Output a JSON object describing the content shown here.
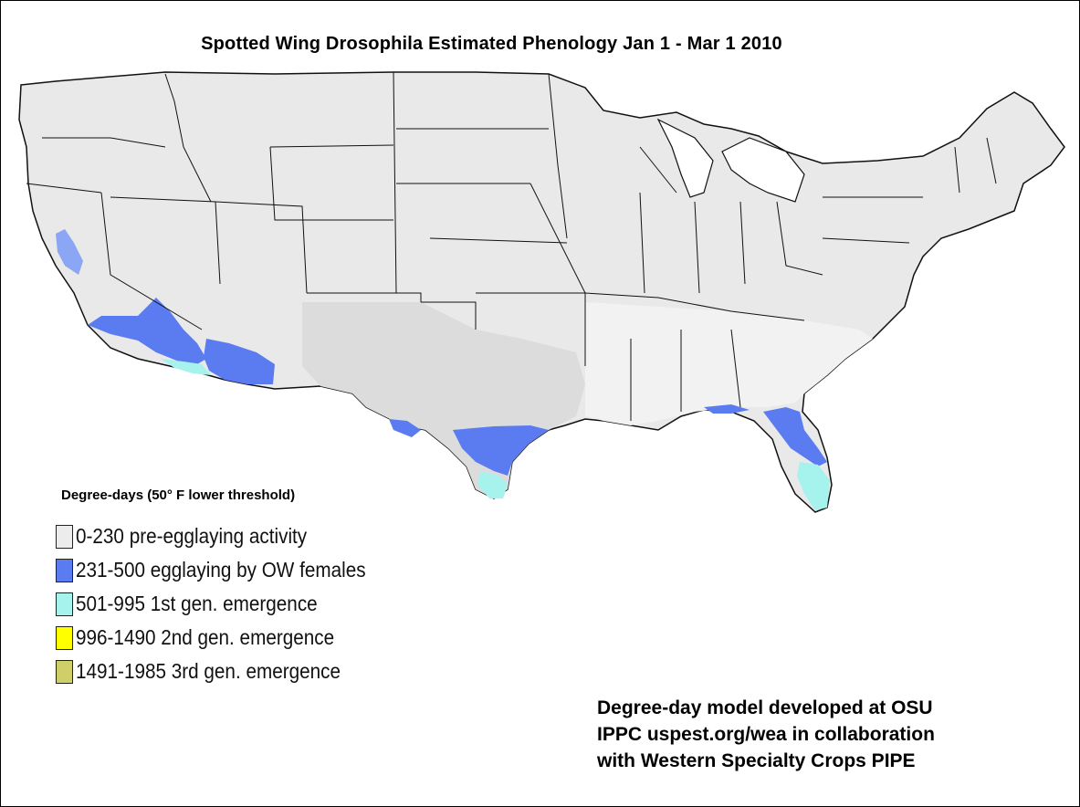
{
  "title": "Spotted Wing Drosophila Estimated Phenology Jan 1 - Mar 1 2010",
  "legend": {
    "title": "Degree-days (50° F lower threshold)",
    "items": [
      {
        "label": "0-230  pre-egglaying activity",
        "color": "#ececec"
      },
      {
        "label": "231-500 egglaying by OW females",
        "color": "#5a7cf0"
      },
      {
        "label": "501-995  1st gen. emergence",
        "color": "#a6f2ec"
      },
      {
        "label": "996-1490  2nd gen. emergence",
        "color": "#ffff00"
      },
      {
        "label": "1491-1985  3rd gen. emergence",
        "color": "#cfcf6a"
      }
    ]
  },
  "credits": [
    "Degree-day model developed at OSU",
    "IPPC uspest.org/wea in collaboration",
    "with Western Specialty Crops PIPE"
  ]
}
